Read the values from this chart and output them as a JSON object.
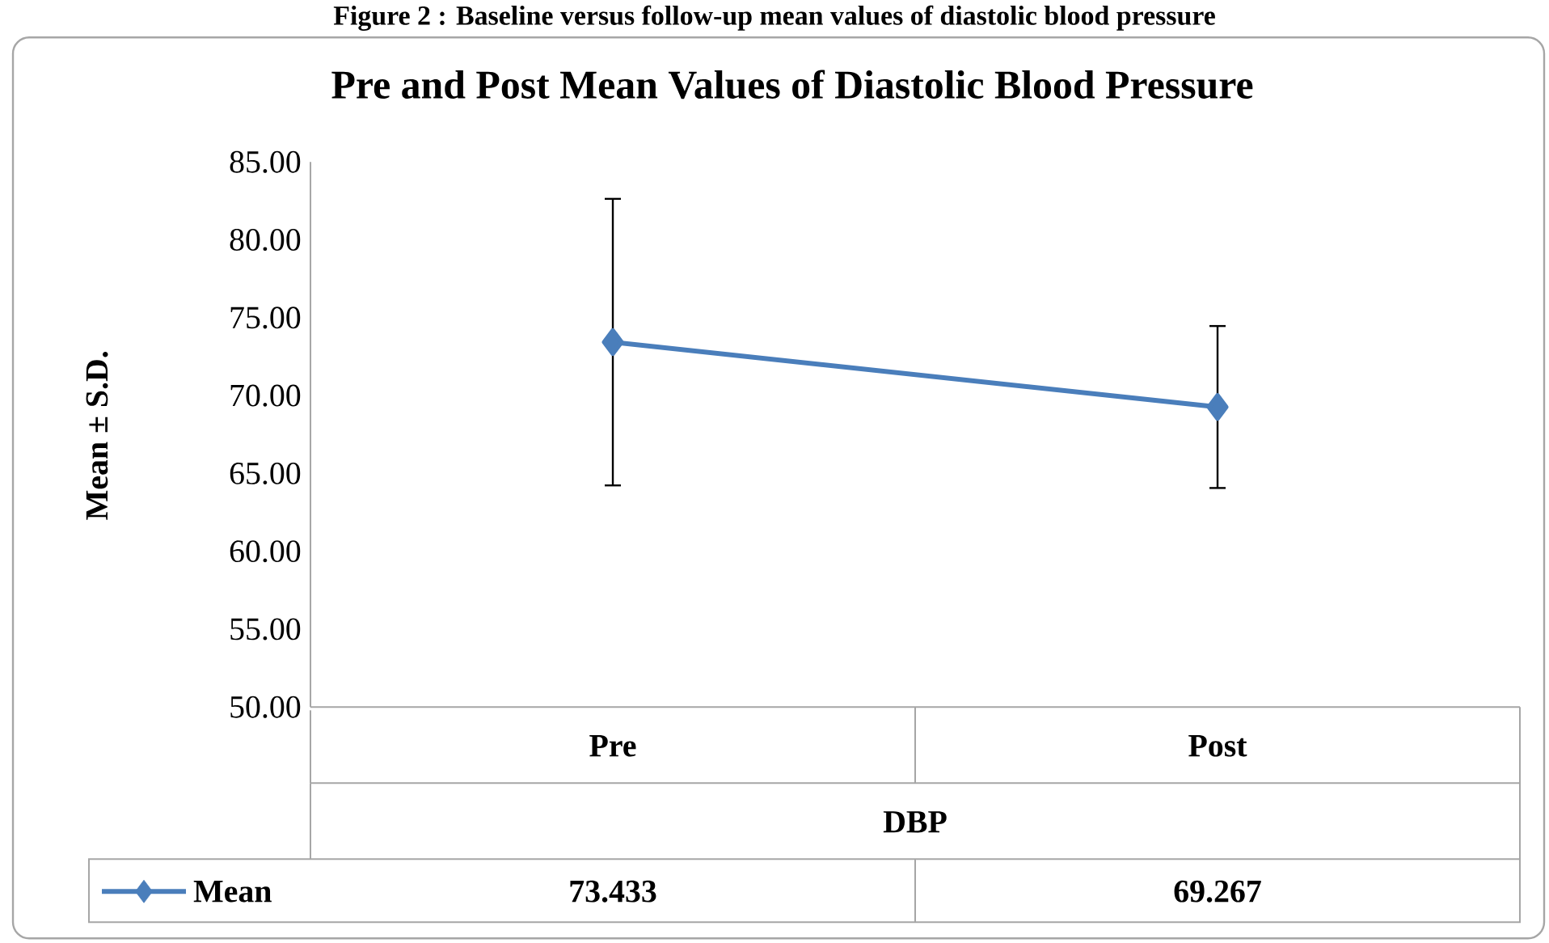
{
  "chart_data": {
    "type": "line",
    "title": "Pre and Post Mean Values of Diastolic Blood Pressure",
    "annotations": [
      "Figure 2 : Baseline versus follow-up mean values of diastolic blood pressure"
    ],
    "xlabel": "DBP",
    "ylabel": "Mean ± S.D.",
    "categories": [
      "Pre",
      "Post"
    ],
    "series": [
      {
        "name": "Mean",
        "color": "#4a7ebb",
        "values": [
          73.433,
          69.267
        ],
        "errors": [
          9.2,
          5.2
        ],
        "value_labels": [
          "73.433",
          "69.267"
        ]
      }
    ],
    "ylim": [
      50,
      85
    ],
    "yticks": [
      {
        "value": 50,
        "label": "50.00"
      },
      {
        "value": 55,
        "label": "55.00"
      },
      {
        "value": 60,
        "label": "60.00"
      },
      {
        "value": 65,
        "label": "65.00"
      },
      {
        "value": 70,
        "label": "70.00"
      },
      {
        "value": 75,
        "label": "75.00"
      },
      {
        "value": 80,
        "label": "80.00"
      },
      {
        "value": 85,
        "label": "85.00"
      }
    ],
    "marker": "diamond",
    "line_style": "solid",
    "grid": false,
    "legend": "bottom"
  }
}
